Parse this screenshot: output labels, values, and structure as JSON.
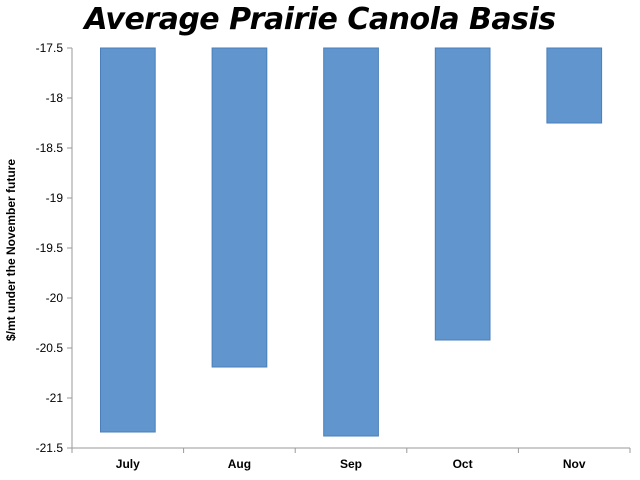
{
  "chart_data": {
    "type": "bar",
    "title": "Average Prairie Canola Basis",
    "xlabel": "",
    "ylabel": "$/mt under the November future",
    "categories": [
      "July",
      "Aug",
      "Sep",
      "Oct",
      "Nov"
    ],
    "values": [
      -21.34,
      -20.69,
      -21.38,
      -20.42,
      -18.25
    ],
    "ylim": [
      -21.5,
      -17.5
    ],
    "yticks": [
      "-17.5",
      "-18",
      "-18.5",
      "-19",
      "-19.5",
      "-20",
      "-20.5",
      "-21",
      "-21.5"
    ],
    "bar_color": "#6096cd",
    "bar_edge_color": "#4a7fba",
    "grid": false,
    "legend": "none"
  }
}
